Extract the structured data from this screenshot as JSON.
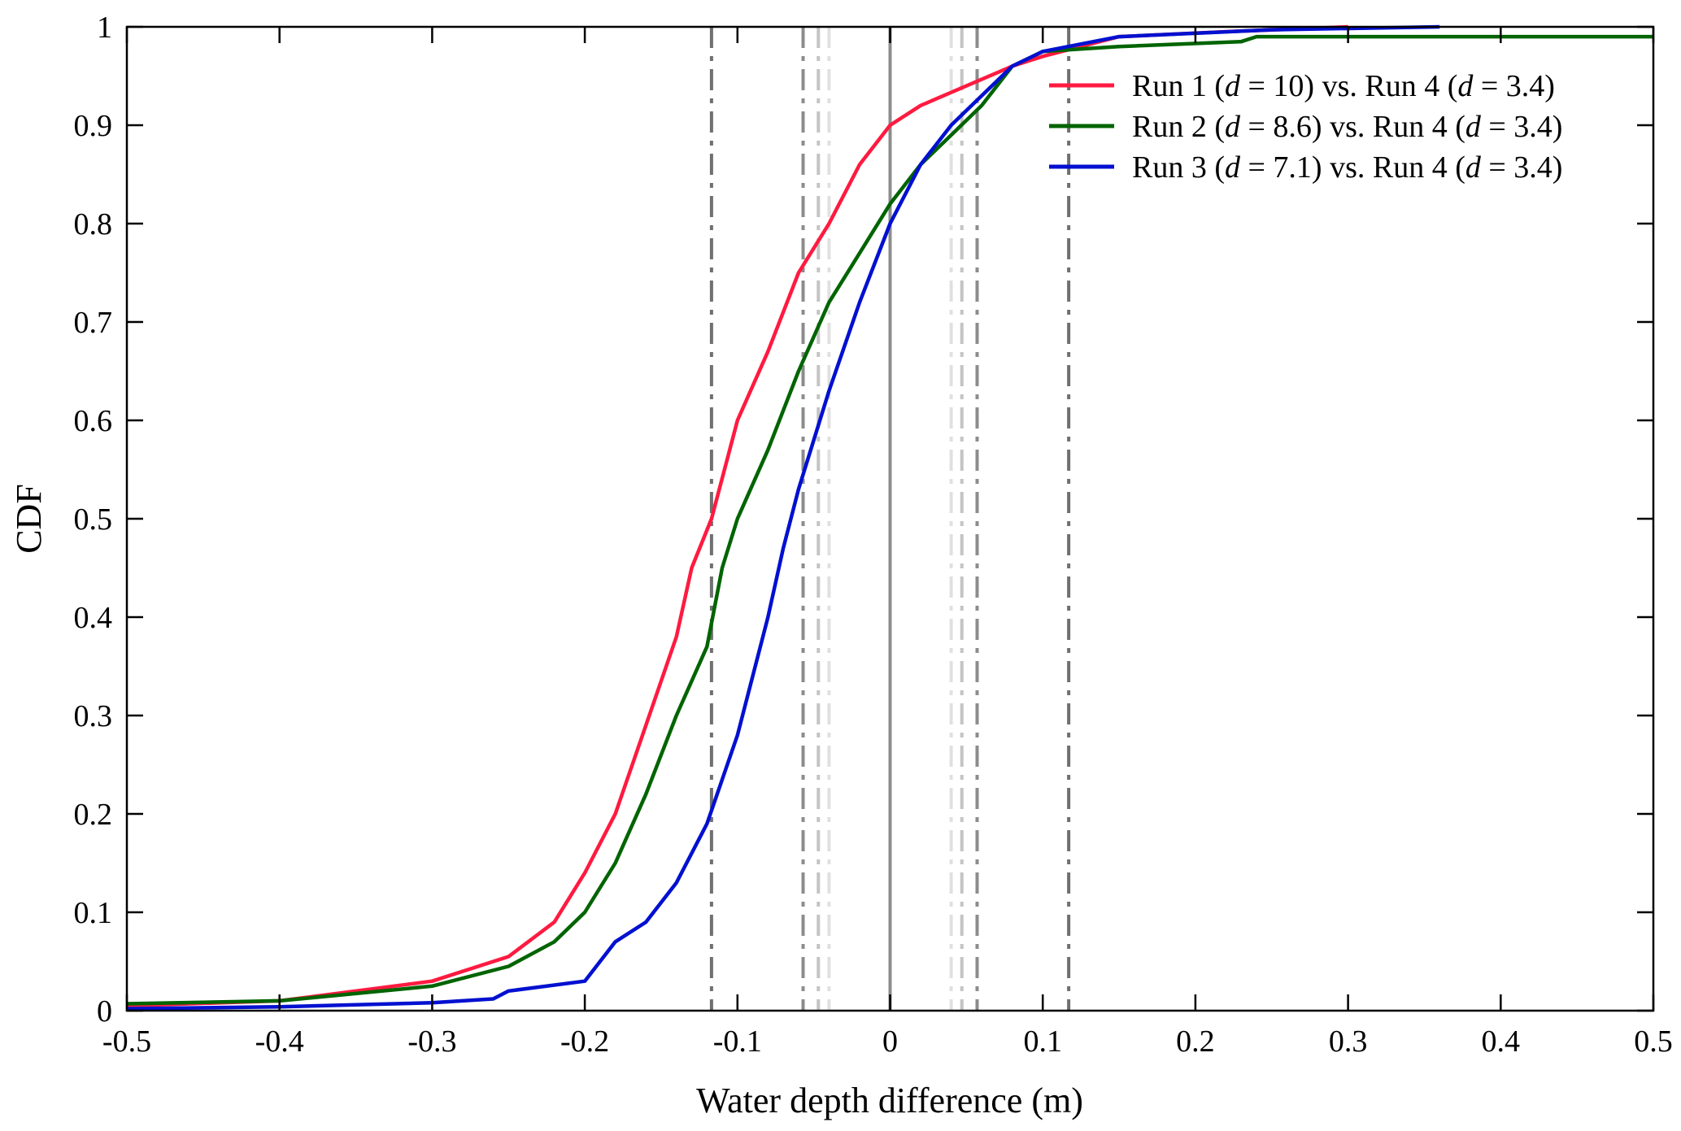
{
  "chart_data": {
    "type": "line",
    "title": "",
    "xlabel": "Water depth difference (m)",
    "ylabel": "CDF",
    "xlim": [
      -0.5,
      0.5
    ],
    "ylim": [
      0,
      1
    ],
    "xticks": [
      "-0.5",
      "-0.4",
      "-0.3",
      "-0.2",
      "-0.1",
      "0",
      "0.1",
      "0.2",
      "0.3",
      "0.4",
      "0.5"
    ],
    "yticks": [
      "0",
      "0.1",
      "0.2",
      "0.3",
      "0.4",
      "0.5",
      "0.6",
      "0.7",
      "0.8",
      "0.9",
      "1"
    ],
    "grid": false,
    "legend_position": "top-right",
    "series": [
      {
        "name": "Run 1 (d = 10)  vs. Run 4 (d = 3.4)",
        "legend_parts": [
          "Run 1 (",
          "d",
          " = 10)  vs. Run 4 (",
          "d",
          " = 3.4)"
        ],
        "color": "#ff1a40",
        "x": [
          -0.5,
          -0.4,
          -0.3,
          -0.25,
          -0.22,
          -0.2,
          -0.18,
          -0.16,
          -0.14,
          -0.13,
          -0.117,
          -0.1,
          -0.08,
          -0.06,
          -0.04,
          -0.02,
          0,
          0.02,
          0.05,
          0.08,
          0.1,
          0.15,
          0.22,
          0.3
        ],
        "y": [
          0.005,
          0.01,
          0.03,
          0.055,
          0.09,
          0.14,
          0.2,
          0.29,
          0.38,
          0.45,
          0.5,
          0.6,
          0.67,
          0.75,
          0.8,
          0.86,
          0.9,
          0.92,
          0.94,
          0.96,
          0.97,
          0.99,
          0.995,
          1.0
        ]
      },
      {
        "name": "Run 2 (d = 8.6) vs. Run 4 (d = 3.4)",
        "legend_parts": [
          "Run 2 (",
          "d",
          " = 8.6) vs. Run 4 (",
          "d",
          " = 3.4)"
        ],
        "color": "#006400",
        "x": [
          -0.5,
          -0.4,
          -0.3,
          -0.25,
          -0.22,
          -0.2,
          -0.18,
          -0.16,
          -0.14,
          -0.12,
          -0.11,
          -0.1,
          -0.08,
          -0.06,
          -0.04,
          -0.02,
          0,
          0.02,
          0.04,
          0.06,
          0.08,
          0.1,
          0.15,
          0.23,
          0.24,
          0.5
        ],
        "y": [
          0.007,
          0.01,
          0.025,
          0.045,
          0.07,
          0.1,
          0.15,
          0.22,
          0.3,
          0.37,
          0.45,
          0.5,
          0.57,
          0.65,
          0.72,
          0.77,
          0.82,
          0.86,
          0.89,
          0.92,
          0.96,
          0.975,
          0.98,
          0.985,
          0.99,
          0.99
        ]
      },
      {
        "name": "Run 3 (d = 7.1) vs. Run 4 (d = 3.4)",
        "legend_parts": [
          "Run 3 (",
          "d",
          " = 7.1) vs. Run 4 (",
          "d",
          " = 3.4)"
        ],
        "color": "#0010d0",
        "x": [
          -0.5,
          -0.4,
          -0.3,
          -0.26,
          -0.25,
          -0.2,
          -0.18,
          -0.16,
          -0.14,
          -0.12,
          -0.1,
          -0.08,
          -0.07,
          -0.06,
          -0.04,
          -0.02,
          0,
          0.02,
          0.04,
          0.06,
          0.08,
          0.1,
          0.15,
          0.25,
          0.36
        ],
        "y": [
          0.002,
          0.004,
          0.008,
          0.012,
          0.02,
          0.03,
          0.07,
          0.09,
          0.13,
          0.19,
          0.28,
          0.4,
          0.47,
          0.53,
          0.63,
          0.72,
          0.8,
          0.86,
          0.9,
          0.93,
          0.96,
          0.975,
          0.99,
          0.997,
          1.0
        ]
      }
    ],
    "reference_lines": [
      {
        "x": 0,
        "style": "solid",
        "color": "#8c8c8c"
      },
      {
        "x": -0.117,
        "style": "dashdot",
        "color": "#707070"
      },
      {
        "x": 0.117,
        "style": "dashdot",
        "color": "#707070"
      },
      {
        "x": -0.057,
        "style": "dashdot",
        "color": "#8c8c8c"
      },
      {
        "x": 0.057,
        "style": "dashdot",
        "color": "#8c8c8c"
      },
      {
        "x": -0.047,
        "style": "dashdot",
        "color": "#c4c4c4"
      },
      {
        "x": 0.047,
        "style": "dashdot",
        "color": "#c4c4c4"
      },
      {
        "x": -0.04,
        "style": "dashdot",
        "color": "#e0e0e0"
      },
      {
        "x": 0.04,
        "style": "dashdot",
        "color": "#e0e0e0"
      }
    ]
  }
}
